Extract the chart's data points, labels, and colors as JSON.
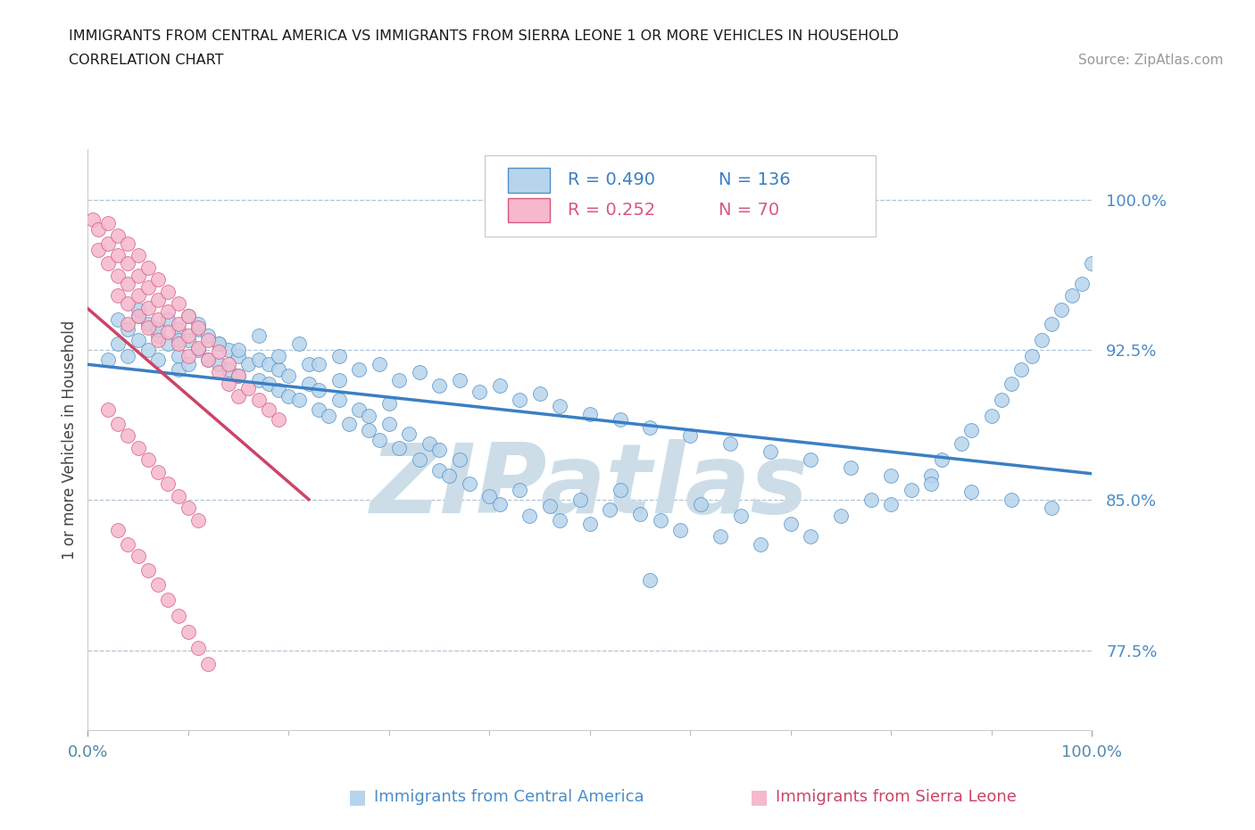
{
  "title_line1": "IMMIGRANTS FROM CENTRAL AMERICA VS IMMIGRANTS FROM SIERRA LEONE 1 OR MORE VEHICLES IN HOUSEHOLD",
  "title_line2": "CORRELATION CHART",
  "source_text": "Source: ZipAtlas.com",
  "ylabel": "1 or more Vehicles in Household",
  "xmin": 0.0,
  "xmax": 1.0,
  "ymin": 0.735,
  "ymax": 1.025,
  "yticks": [
    0.775,
    0.85,
    0.925,
    1.0
  ],
  "ytick_labels": [
    "77.5%",
    "85.0%",
    "92.5%",
    "100.0%"
  ],
  "xtick_labels": [
    "0.0%",
    "100.0%"
  ],
  "xtick_positions": [
    0.0,
    1.0
  ],
  "legend_R1": "R = 0.490",
  "legend_N1": "N = 136",
  "legend_R2": "R = 0.252",
  "legend_N2": "N = 70",
  "blue_face": "#b8d4ec",
  "blue_edge": "#5090c8",
  "pink_face": "#f5b8cc",
  "pink_edge": "#d85880",
  "blue_line": "#3a7fc4",
  "pink_line": "#cc4466",
  "watermark_color": "#ccdde8",
  "bg_color": "#ffffff",
  "grid_color": "#b0c4d8",
  "title_color": "#1a1a1a",
  "source_color": "#999999",
  "yticklabel_color": "#4a8cc8",
  "xticklabel_color": "#5588aa",
  "ylabel_color": "#444444",
  "bottom_blue_color": "#4a8cc8",
  "bottom_pink_color": "#cc4466",
  "blue_scatter_x": [
    0.02,
    0.03,
    0.04,
    0.04,
    0.05,
    0.05,
    0.06,
    0.06,
    0.07,
    0.07,
    0.08,
    0.08,
    0.09,
    0.09,
    0.09,
    0.1,
    0.1,
    0.1,
    0.11,
    0.11,
    0.12,
    0.12,
    0.13,
    0.13,
    0.14,
    0.14,
    0.15,
    0.15,
    0.16,
    0.17,
    0.17,
    0.18,
    0.18,
    0.19,
    0.19,
    0.2,
    0.2,
    0.21,
    0.22,
    0.22,
    0.23,
    0.23,
    0.24,
    0.25,
    0.25,
    0.26,
    0.27,
    0.28,
    0.28,
    0.29,
    0.3,
    0.3,
    0.31,
    0.32,
    0.33,
    0.34,
    0.35,
    0.35,
    0.36,
    0.37,
    0.38,
    0.4,
    0.41,
    0.43,
    0.44,
    0.46,
    0.47,
    0.49,
    0.5,
    0.52,
    0.53,
    0.55,
    0.56,
    0.57,
    0.59,
    0.61,
    0.63,
    0.65,
    0.67,
    0.7,
    0.72,
    0.75,
    0.78,
    0.8,
    0.82,
    0.84,
    0.85,
    0.87,
    0.88,
    0.9,
    0.91,
    0.92,
    0.93,
    0.94,
    0.95,
    0.96,
    0.97,
    0.98,
    0.99,
    1.0,
    0.03,
    0.05,
    0.07,
    0.09,
    0.11,
    0.13,
    0.15,
    0.17,
    0.19,
    0.21,
    0.23,
    0.25,
    0.27,
    0.29,
    0.31,
    0.33,
    0.35,
    0.37,
    0.39,
    0.41,
    0.43,
    0.45,
    0.47,
    0.5,
    0.53,
    0.56,
    0.6,
    0.64,
    0.68,
    0.72,
    0.76,
    0.8,
    0.84,
    0.88,
    0.92,
    0.96
  ],
  "blue_scatter_y": [
    0.92,
    0.928,
    0.935,
    0.922,
    0.93,
    0.942,
    0.925,
    0.938,
    0.92,
    0.932,
    0.928,
    0.94,
    0.922,
    0.935,
    0.915,
    0.93,
    0.918,
    0.942,
    0.925,
    0.935,
    0.92,
    0.932,
    0.918,
    0.928,
    0.915,
    0.925,
    0.912,
    0.922,
    0.918,
    0.91,
    0.92,
    0.908,
    0.918,
    0.905,
    0.915,
    0.902,
    0.912,
    0.9,
    0.908,
    0.918,
    0.895,
    0.905,
    0.892,
    0.9,
    0.91,
    0.888,
    0.895,
    0.885,
    0.892,
    0.88,
    0.888,
    0.898,
    0.876,
    0.883,
    0.87,
    0.878,
    0.865,
    0.875,
    0.862,
    0.87,
    0.858,
    0.852,
    0.848,
    0.855,
    0.842,
    0.847,
    0.84,
    0.85,
    0.838,
    0.845,
    0.855,
    0.843,
    0.81,
    0.84,
    0.835,
    0.848,
    0.832,
    0.842,
    0.828,
    0.838,
    0.832,
    0.842,
    0.85,
    0.848,
    0.855,
    0.862,
    0.87,
    0.878,
    0.885,
    0.892,
    0.9,
    0.908,
    0.915,
    0.922,
    0.93,
    0.938,
    0.945,
    0.952,
    0.958,
    0.968,
    0.94,
    0.945,
    0.935,
    0.93,
    0.938,
    0.928,
    0.925,
    0.932,
    0.922,
    0.928,
    0.918,
    0.922,
    0.915,
    0.918,
    0.91,
    0.914,
    0.907,
    0.91,
    0.904,
    0.907,
    0.9,
    0.903,
    0.897,
    0.893,
    0.89,
    0.886,
    0.882,
    0.878,
    0.874,
    0.87,
    0.866,
    0.862,
    0.858,
    0.854,
    0.85,
    0.846
  ],
  "pink_scatter_x": [
    0.005,
    0.01,
    0.01,
    0.02,
    0.02,
    0.02,
    0.03,
    0.03,
    0.03,
    0.03,
    0.04,
    0.04,
    0.04,
    0.04,
    0.04,
    0.05,
    0.05,
    0.05,
    0.05,
    0.06,
    0.06,
    0.06,
    0.06,
    0.07,
    0.07,
    0.07,
    0.07,
    0.08,
    0.08,
    0.08,
    0.09,
    0.09,
    0.09,
    0.1,
    0.1,
    0.1,
    0.11,
    0.11,
    0.12,
    0.12,
    0.13,
    0.13,
    0.14,
    0.14,
    0.15,
    0.15,
    0.16,
    0.17,
    0.18,
    0.19,
    0.02,
    0.03,
    0.04,
    0.05,
    0.06,
    0.07,
    0.08,
    0.09,
    0.1,
    0.11,
    0.03,
    0.04,
    0.05,
    0.06,
    0.07,
    0.08,
    0.09,
    0.1,
    0.11,
    0.12
  ],
  "pink_scatter_y": [
    0.99,
    0.985,
    0.975,
    0.988,
    0.978,
    0.968,
    0.982,
    0.972,
    0.962,
    0.952,
    0.978,
    0.968,
    0.958,
    0.948,
    0.938,
    0.972,
    0.962,
    0.952,
    0.942,
    0.966,
    0.956,
    0.946,
    0.936,
    0.96,
    0.95,
    0.94,
    0.93,
    0.954,
    0.944,
    0.934,
    0.948,
    0.938,
    0.928,
    0.942,
    0.932,
    0.922,
    0.936,
    0.926,
    0.93,
    0.92,
    0.924,
    0.914,
    0.918,
    0.908,
    0.912,
    0.902,
    0.906,
    0.9,
    0.895,
    0.89,
    0.895,
    0.888,
    0.882,
    0.876,
    0.87,
    0.864,
    0.858,
    0.852,
    0.846,
    0.84,
    0.835,
    0.828,
    0.822,
    0.815,
    0.808,
    0.8,
    0.792,
    0.784,
    0.776,
    0.768
  ]
}
